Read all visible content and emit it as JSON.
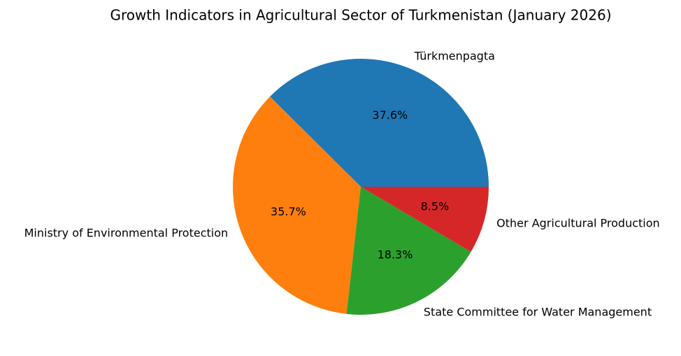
{
  "chart_data": {
    "type": "pie",
    "title": "Growth Indicators in Agricultural Sector of Turkmenistan (January 2026)",
    "categories": [
      "Türkmenpagta",
      "Ministry of Environmental Protection",
      "State Committee for Water Management",
      "Other Agricultural Production"
    ],
    "values": [
      37.6,
      35.7,
      18.3,
      8.5
    ],
    "value_labels": [
      "37.6%",
      "35.7%",
      "18.3%",
      "8.5%"
    ],
    "colors": [
      "#1f77b4",
      "#ff7f0e",
      "#2ca02c",
      "#d62728"
    ]
  }
}
